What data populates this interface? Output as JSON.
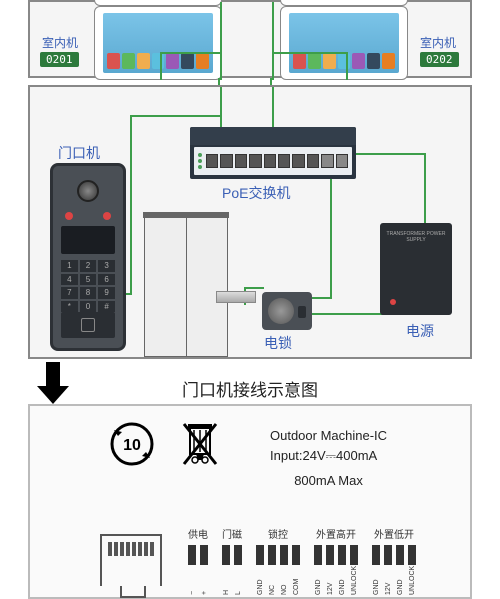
{
  "colors": {
    "wire": "#3d9e4a",
    "label_blue": "#3a5fb5",
    "badge_bg": "#2d7a3c",
    "device_dark": "#2a2e33",
    "panel_border": "#888888"
  },
  "top_panel": {
    "indoor_left": {
      "label": "室内机",
      "badge": "0201"
    },
    "indoor_right": {
      "label": "室内机",
      "badge": "0202"
    },
    "screen_icon_colors": [
      "#d9534f",
      "#5cb85c",
      "#f0ad4e",
      "#5bc0de",
      "#9b59b6",
      "#34495e",
      "#e67e22"
    ]
  },
  "mid_panel": {
    "switch_label": "PoE交换机",
    "door_label": "门口机",
    "lock_label": "电锁",
    "power_label": "电源",
    "keypad": [
      "1",
      "2",
      "3",
      "4",
      "5",
      "6",
      "7",
      "8",
      "9",
      "*",
      "0",
      "#"
    ],
    "psu_text": "TRANSFORMER POWER SUPPLY"
  },
  "section_title": "门口机接线示意图",
  "bottom_panel": {
    "recycle_number": "10",
    "outdoor_line1": "Outdoor Machine-IC",
    "outdoor_line2": "Input:24V⎓400mA",
    "outdoor_line3": "800mA Max",
    "terminal_groups": [
      {
        "label": "供电",
        "pins": [
          "−",
          "+"
        ]
      },
      {
        "label": "门磁",
        "pins": [
          "H",
          "L"
        ]
      },
      {
        "label": "锁控",
        "pins": [
          "GND",
          "NC",
          "NO",
          "COM"
        ]
      },
      {
        "label": "外置高开",
        "pins": [
          "GND",
          "12V",
          "GND",
          "UNLOCK"
        ]
      },
      {
        "label": "外置低开",
        "pins": [
          "GND",
          "12V",
          "GND",
          "UNLOCK"
        ]
      }
    ]
  }
}
